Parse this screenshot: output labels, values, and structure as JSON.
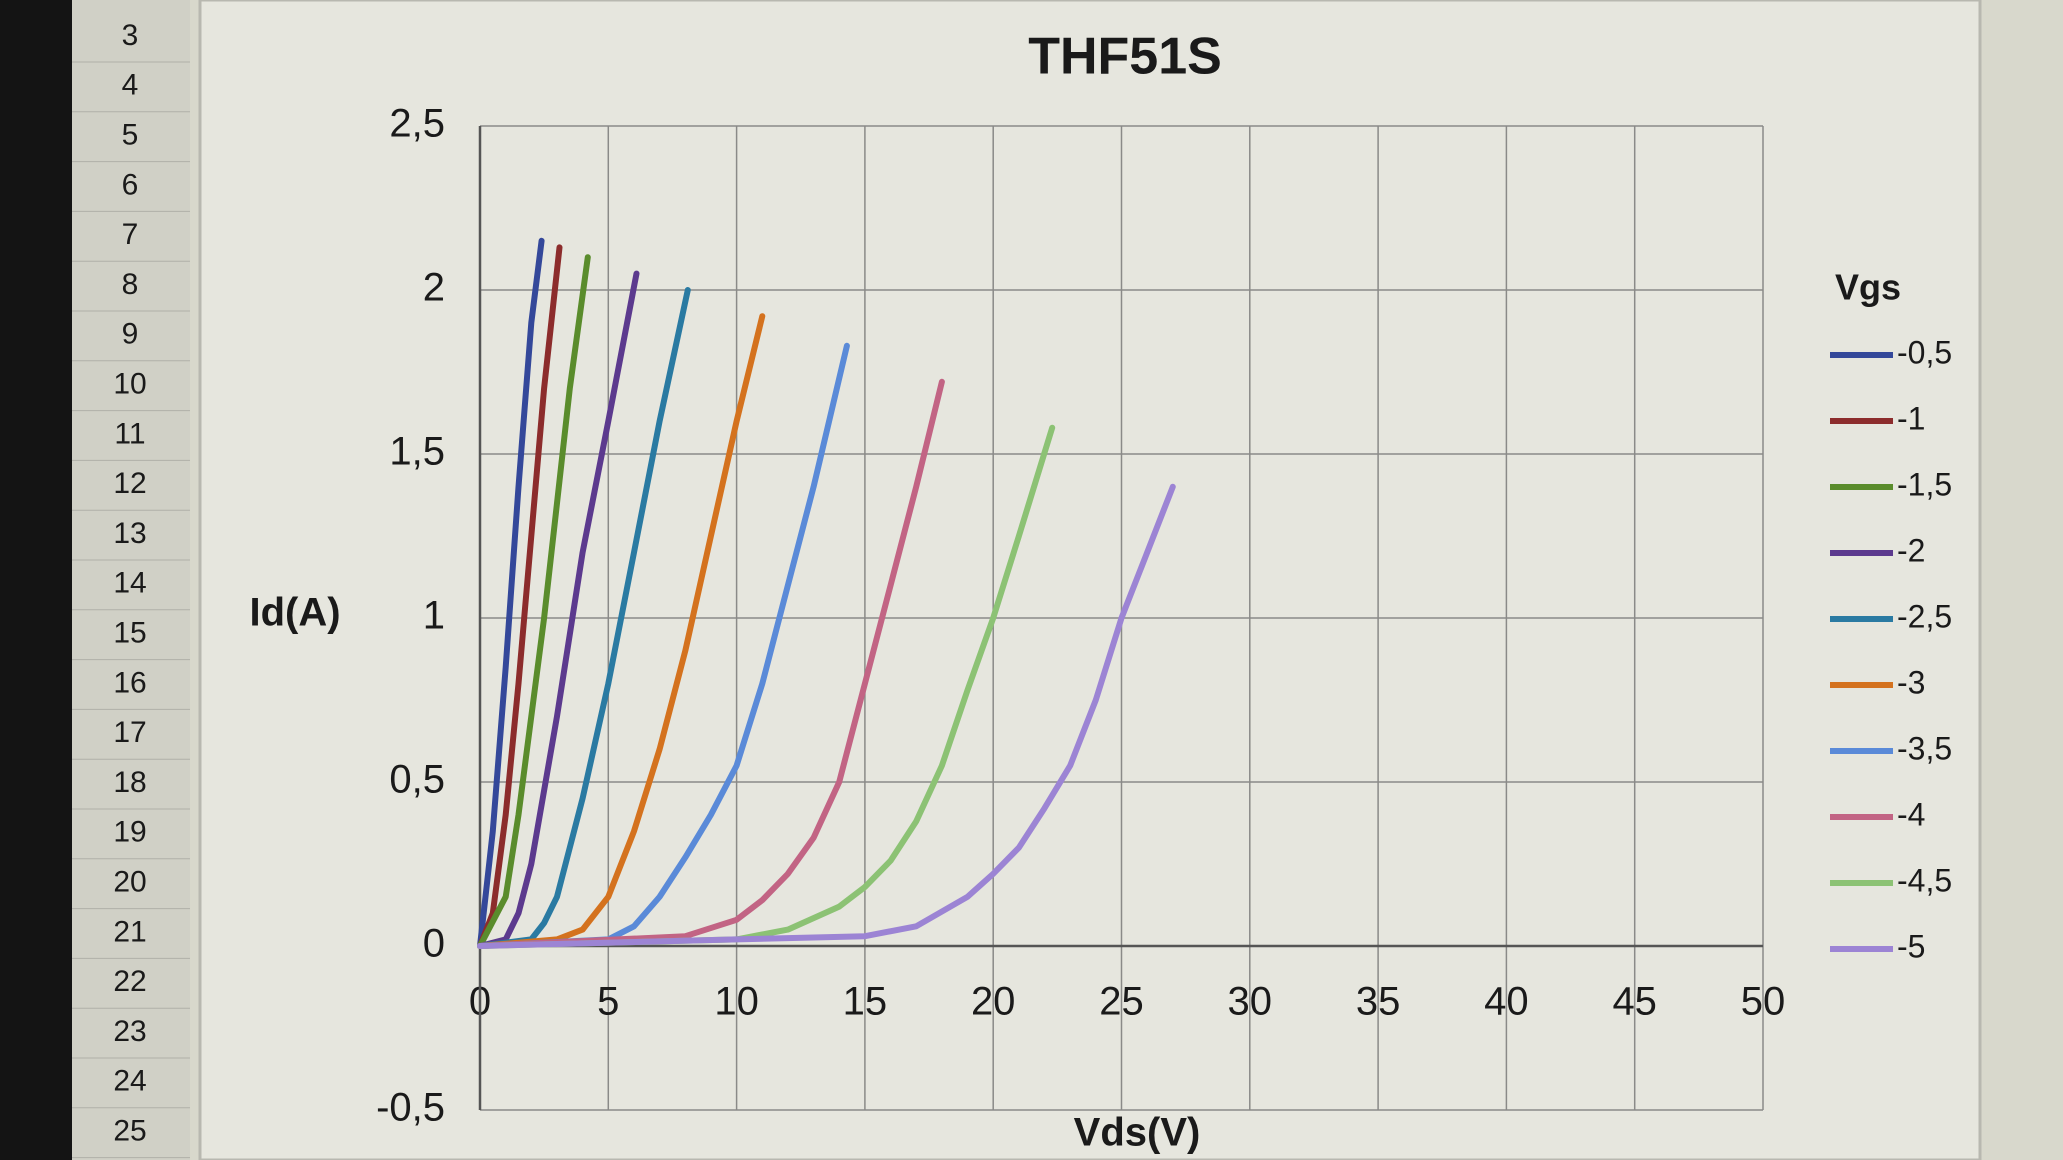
{
  "row_headers": [
    3,
    4,
    5,
    6,
    7,
    8,
    9,
    10,
    11,
    12,
    13,
    14,
    15,
    16,
    17,
    18,
    19,
    20,
    21,
    22,
    23,
    24,
    25
  ],
  "chart_data": {
    "type": "line",
    "title": "THF51S",
    "x_label": "Vds(V)",
    "y_label": "Id(A)",
    "legend_title": "Vgs",
    "legend_position": "right",
    "grid": true,
    "xlim": [
      0,
      50
    ],
    "xticks": [
      0,
      5,
      10,
      15,
      20,
      25,
      30,
      35,
      40,
      45,
      50
    ],
    "ylim": [
      -0.5,
      2.5
    ],
    "yticks": [
      {
        "value": -0.5,
        "label": "-0,5"
      },
      0,
      {
        "value": 0.5,
        "label": "0,5"
      },
      1,
      {
        "value": 1.5,
        "label": "1,5"
      },
      2,
      {
        "value": 2.5,
        "label": "2,5"
      }
    ],
    "series": [
      {
        "name": "-0,5",
        "color": "#34489a",
        "x": [
          0,
          0.5,
          1,
          1.5,
          2,
          2.4
        ],
        "values": [
          0,
          0.35,
          0.85,
          1.4,
          1.9,
          2.15
        ]
      },
      {
        "name": "-1",
        "color": "#8c2c2c",
        "x": [
          0,
          0.5,
          1,
          1.5,
          2,
          2.5,
          3.1
        ],
        "values": [
          0,
          0.1,
          0.4,
          0.8,
          1.25,
          1.7,
          2.13
        ]
      },
      {
        "name": "-1,5",
        "color": "#5a8c2c",
        "x": [
          0,
          1,
          1.5,
          2,
          2.5,
          3,
          3.5,
          4.2
        ],
        "values": [
          0,
          0.15,
          0.4,
          0.7,
          1.0,
          1.35,
          1.7,
          2.1
        ]
      },
      {
        "name": "-2",
        "color": "#5c3a8e",
        "x": [
          0,
          1,
          1.5,
          2,
          3,
          4,
          5,
          6.1
        ],
        "values": [
          0,
          0.02,
          0.1,
          0.25,
          0.7,
          1.2,
          1.6,
          2.05
        ]
      },
      {
        "name": "-2,5",
        "color": "#2a7aa2",
        "x": [
          0,
          2,
          2.5,
          3,
          4,
          5,
          6,
          7,
          8.1
        ],
        "values": [
          0,
          0.02,
          0.07,
          0.15,
          0.45,
          0.8,
          1.2,
          1.6,
          2.0
        ]
      },
      {
        "name": "-3",
        "color": "#d4721e",
        "x": [
          0,
          3,
          4,
          5,
          6,
          7,
          8,
          9,
          10,
          11
        ],
        "values": [
          0,
          0.02,
          0.05,
          0.15,
          0.35,
          0.6,
          0.9,
          1.25,
          1.6,
          1.92
        ]
      },
      {
        "name": "-3,5",
        "color": "#5a8ad8",
        "x": [
          0,
          5,
          6,
          7,
          8,
          9,
          10,
          11,
          12,
          13,
          14.3
        ],
        "values": [
          0,
          0.02,
          0.06,
          0.15,
          0.27,
          0.4,
          0.55,
          0.8,
          1.1,
          1.4,
          1.83
        ]
      },
      {
        "name": "-4",
        "color": "#c26484",
        "x": [
          0,
          8,
          10,
          11,
          12,
          13,
          14,
          15,
          16,
          17,
          18
        ],
        "values": [
          0,
          0.03,
          0.08,
          0.14,
          0.22,
          0.33,
          0.5,
          0.8,
          1.1,
          1.4,
          1.72
        ]
      },
      {
        "name": "-4,5",
        "color": "#8cc274",
        "x": [
          0,
          10,
          12,
          14,
          15,
          16,
          17,
          18,
          19,
          20,
          21,
          22.3
        ],
        "values": [
          0,
          0.02,
          0.05,
          0.12,
          0.18,
          0.26,
          0.38,
          0.55,
          0.78,
          1.0,
          1.25,
          1.58
        ]
      },
      {
        "name": "-5",
        "color": "#9c84d4",
        "x": [
          0,
          10,
          15,
          17,
          19,
          20,
          21,
          22,
          23,
          24,
          25,
          26,
          27
        ],
        "values": [
          0,
          0.02,
          0.03,
          0.06,
          0.15,
          0.22,
          0.3,
          0.42,
          0.55,
          0.75,
          1.0,
          1.2,
          1.4
        ]
      }
    ]
  }
}
